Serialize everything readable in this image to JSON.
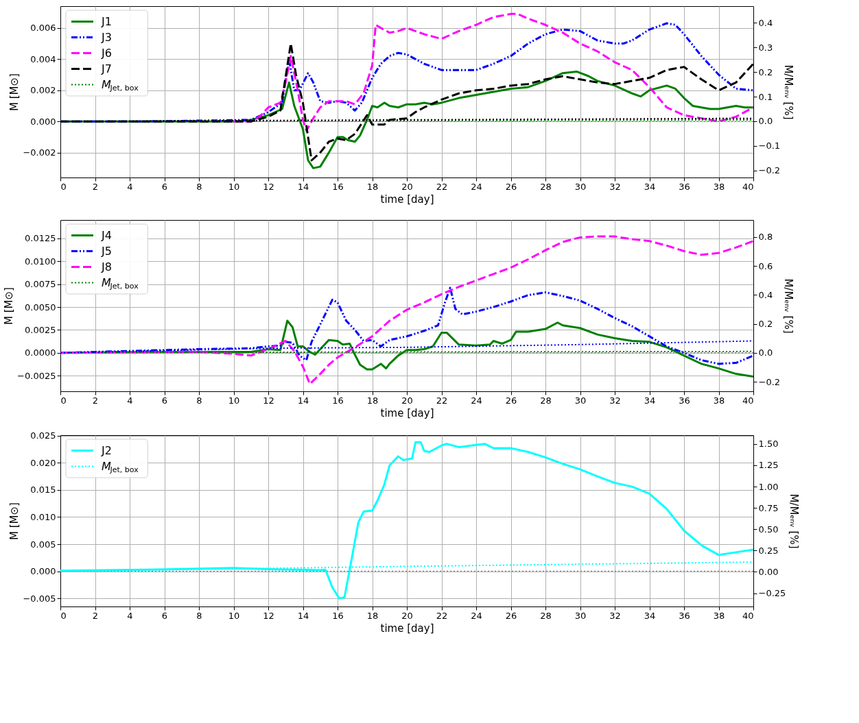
{
  "chart_data": [
    {
      "type": "line",
      "xlabel": "time [day]",
      "ylabel": "M [M⊙]",
      "y2label": "M/Mₑₙᵥ [%]",
      "xlim": [
        0,
        40
      ],
      "xticks": [
        0,
        2,
        4,
        6,
        8,
        10,
        12,
        14,
        16,
        18,
        20,
        22,
        24,
        26,
        28,
        30,
        32,
        34,
        36,
        38,
        40
      ],
      "ylim": [
        -0.0036,
        0.0074
      ],
      "yticks": [
        {
          "value": -0.002,
          "label": "−0.002"
        },
        {
          "value": 0,
          "label": "0.000"
        },
        {
          "value": 0.002,
          "label": "0.002"
        },
        {
          "value": 0.004,
          "label": "0.004"
        },
        {
          "value": 0.006,
          "label": "0.006"
        }
      ],
      "y2lim": [
        -0.228,
        0.467
      ],
      "y2ticks": [
        {
          "value": -0.2,
          "label": "−0.2"
        },
        {
          "value": -0.1,
          "label": "−0.1"
        },
        {
          "value": 0,
          "label": "0.0"
        },
        {
          "value": 0.1,
          "label": "0.1"
        },
        {
          "value": 0.2,
          "label": "0.2"
        },
        {
          "value": 0.3,
          "label": "0.3"
        },
        {
          "value": 0.4,
          "label": "0.4"
        }
      ],
      "grid": true,
      "legend": "top left",
      "ref_lines": [
        {
          "axis": "y",
          "value": 0,
          "color": "#808080",
          "line_style": "dotted"
        }
      ],
      "series": [
        {
          "name": "J1",
          "color": "#008000",
          "line_style": "solid",
          "x": [
            0,
            5,
            10,
            11,
            12,
            12.8,
            13.2,
            13.5,
            14,
            14.3,
            14.6,
            15,
            15.5,
            16,
            16.3,
            16.6,
            17,
            17.3,
            17.7,
            18,
            18.3,
            18.7,
            19,
            19.5,
            20,
            20.5,
            21,
            21.5,
            22,
            23,
            24,
            25,
            26,
            27,
            28,
            29,
            29.8,
            30.5,
            31,
            32,
            33,
            33.5,
            34,
            35,
            35.5,
            36,
            36.5,
            37,
            37.5,
            38,
            38.5,
            39,
            39.5,
            40
          ],
          "values": [
            0,
            0,
            0,
            0.0001,
            0.0004,
            0.0008,
            0.0025,
            0.001,
            -0.0005,
            -0.0025,
            -0.003,
            -0.0029,
            -0.002,
            -0.001,
            -0.001,
            -0.0012,
            -0.0013,
            -0.0009,
            0.0001,
            0.001,
            0.0009,
            0.0012,
            0.001,
            0.0009,
            0.0011,
            0.0011,
            0.0012,
            0.0011,
            0.0012,
            0.0015,
            0.0017,
            0.0019,
            0.0021,
            0.0022,
            0.0026,
            0.0031,
            0.0032,
            0.0029,
            0.0026,
            0.0023,
            0.0018,
            0.0016,
            0.002,
            0.0023,
            0.0021,
            0.0015,
            0.001,
            0.0009,
            0.0008,
            0.0008,
            0.0009,
            0.001,
            0.0009,
            0.0009
          ]
        },
        {
          "name": "J3",
          "color": "#0000ff",
          "line_style": "dashdot",
          "x": [
            0,
            5,
            11,
            12,
            12.8,
            13.2,
            13.5,
            13.8,
            14.3,
            14.6,
            15,
            15.5,
            16,
            16.5,
            17,
            17.4,
            18,
            18.5,
            19,
            19.5,
            20,
            21,
            22,
            23,
            24,
            25,
            26,
            27,
            28,
            29,
            30,
            31,
            32,
            32.5,
            33,
            34,
            35,
            35.5,
            36,
            37,
            38,
            39,
            40
          ],
          "values": [
            0,
            0,
            0.0001,
            0.0006,
            0.0012,
            0.004,
            0.002,
            0.002,
            0.0031,
            0.0025,
            0.0013,
            0.0012,
            0.0013,
            0.0012,
            0.0007,
            0.0012,
            0.0028,
            0.0037,
            0.0042,
            0.0044,
            0.0043,
            0.0037,
            0.0033,
            0.0033,
            0.0033,
            0.0037,
            0.0042,
            0.005,
            0.0056,
            0.0059,
            0.0058,
            0.0052,
            0.005,
            0.005,
            0.0052,
            0.0059,
            0.0063,
            0.0062,
            0.0056,
            0.0042,
            0.003,
            0.0021,
            0.002
          ]
        },
        {
          "name": "J6",
          "color": "#ff00ff",
          "line_style": "dashed",
          "x": [
            10,
            11,
            11.5,
            12,
            12.7,
            13,
            13.3,
            13.7,
            14,
            14.2,
            14.6,
            15,
            15.5,
            16,
            16.5,
            17,
            17.5,
            18,
            18.2,
            18.5,
            19,
            19.5,
            20,
            21,
            22,
            23,
            24,
            25,
            26,
            26.4,
            27,
            28,
            29,
            30,
            31,
            32,
            33,
            34,
            35,
            36,
            37,
            38,
            39,
            40
          ],
          "values": [
            0,
            0,
            0.0003,
            0.0009,
            0.0012,
            0.0025,
            0.0042,
            0.002,
            0.0001,
            -0.0006,
            0.0002,
            0.0009,
            0.0013,
            0.0013,
            0.0013,
            0.0011,
            0.0018,
            0.0036,
            0.0062,
            0.006,
            0.0057,
            0.0058,
            0.006,
            0.0056,
            0.0053,
            0.0058,
            0.0062,
            0.0067,
            0.0069,
            0.0069,
            0.0066,
            0.0062,
            0.0057,
            0.005,
            0.0045,
            0.0038,
            0.0033,
            0.0022,
            0.0009,
            0.0004,
            0.0002,
            0,
            0.0003,
            0.0009
          ]
        },
        {
          "name": "J7",
          "color": "#000000",
          "line_style": "dashed",
          "x": [
            0,
            5,
            11,
            12,
            12.7,
            13.3,
            13.6,
            14,
            14.5,
            15,
            15.5,
            16,
            16.5,
            17,
            17.7,
            18,
            18.7,
            19,
            20,
            20.5,
            21,
            22,
            23,
            24,
            25,
            26,
            27,
            28,
            29,
            30,
            31,
            32,
            33,
            34,
            35,
            36,
            37,
            38,
            39,
            40
          ],
          "values": [
            0,
            0,
            0,
            0.0003,
            0.0007,
            0.005,
            0.003,
            0.0012,
            -0.0025,
            -0.002,
            -0.0013,
            -0.0011,
            -0.0012,
            -0.0008,
            0.0004,
            -0.0002,
            -0.0002,
            0.0001,
            0.0002,
            0.0006,
            0.0009,
            0.0014,
            0.0018,
            0.002,
            0.0021,
            0.0023,
            0.0024,
            0.0027,
            0.0029,
            0.0027,
            0.0025,
            0.0024,
            0.0026,
            0.0028,
            0.0033,
            0.0035,
            0.0027,
            0.002,
            0.0025,
            0.0037
          ]
        },
        {
          "name": "M$_{Jet, box}$",
          "color": "#008000",
          "line_style": "dotted",
          "x": [
            0,
            40
          ],
          "values": [
            0,
            0.0001
          ]
        },
        {
          "color": "#000000",
          "line_style": "dotted",
          "x": [
            0,
            20,
            40
          ],
          "values": [
            0,
            0.0001,
            0.0002
          ]
        }
      ]
    },
    {
      "type": "line",
      "xlabel": "time [day]",
      "ylabel": "M [M⊙]",
      "y2label": "M/Mₑₙᵥ [%]",
      "xlim": [
        0,
        40
      ],
      "xticks": [
        0,
        2,
        4,
        6,
        8,
        10,
        12,
        14,
        16,
        18,
        20,
        22,
        24,
        26,
        28,
        30,
        32,
        34,
        36,
        38,
        40
      ],
      "ylim": [
        -0.0042,
        0.0145
      ],
      "yticks": [
        {
          "value": -0.0025,
          "label": "−0.0025"
        },
        {
          "value": 0,
          "label": "0.0000"
        },
        {
          "value": 0.0025,
          "label": "0.0025"
        },
        {
          "value": 0.005,
          "label": "0.0050"
        },
        {
          "value": 0.0075,
          "label": "0.0075"
        },
        {
          "value": 0.01,
          "label": "0.0100"
        },
        {
          "value": 0.0125,
          "label": "0.0125"
        }
      ],
      "y2lim": [
        -0.265,
        0.918
      ],
      "y2ticks": [
        {
          "value": -0.2,
          "label": "−0.2"
        },
        {
          "value": 0,
          "label": "0.0"
        },
        {
          "value": 0.2,
          "label": "0.2"
        },
        {
          "value": 0.4,
          "label": "0.4"
        },
        {
          "value": 0.6,
          "label": "0.6"
        },
        {
          "value": 0.8,
          "label": "0.8"
        }
      ],
      "grid": true,
      "legend": "top left",
      "ref_lines": [
        {
          "axis": "y",
          "value": 0,
          "color": "#808080",
          "line_style": "dotted"
        }
      ],
      "series": [
        {
          "name": "J4",
          "color": "#008000",
          "line_style": "solid",
          "x": [
            0,
            5,
            10,
            11,
            12,
            12.7,
            13.1,
            13.4,
            13.7,
            14,
            14.4,
            14.7,
            15,
            15.5,
            16,
            16.3,
            16.7,
            17,
            17.3,
            17.7,
            18,
            18.5,
            18.8,
            19,
            19.5,
            20,
            20.5,
            21,
            21.5,
            22,
            22.3,
            23,
            24,
            24.8,
            25,
            25.5,
            26,
            26.3,
            27,
            28,
            28.7,
            29,
            30,
            31,
            32,
            33,
            34,
            35,
            36,
            37,
            38,
            39,
            40
          ],
          "values": [
            0,
            0.0001,
            0.0001,
            0.0001,
            0.0004,
            0.0003,
            0.0035,
            0.0028,
            0.0007,
            0.0007,
            0.0001,
            -0.0002,
            0.0004,
            0.0014,
            0.0013,
            0.0009,
            0.001,
            -0.0002,
            -0.0013,
            -0.0018,
            -0.0018,
            -0.0012,
            -0.0017,
            -0.0012,
            -0.0003,
            0.0003,
            0.0003,
            0.0004,
            0.0007,
            0.0022,
            0.0022,
            0.0009,
            0.0008,
            0.0009,
            0.0013,
            0.001,
            0.0014,
            0.0023,
            0.0023,
            0.0026,
            0.0033,
            0.003,
            0.0027,
            0.002,
            0.0016,
            0.0013,
            0.0012,
            0.0006,
            -0.0003,
            -0.0012,
            -0.0017,
            -0.0023,
            -0.0026
          ]
        },
        {
          "name": "J5",
          "color": "#0000ff",
          "line_style": "dashdot",
          "x": [
            0,
            4,
            8,
            11,
            12,
            12.7,
            13,
            13.4,
            13.8,
            14.2,
            14.5,
            15,
            15.7,
            16,
            16.5,
            17,
            17.5,
            18,
            18.5,
            19,
            20,
            21,
            21.8,
            22.2,
            22.5,
            22.8,
            23.2,
            24,
            25,
            26,
            27,
            28,
            29,
            30,
            31,
            32,
            33,
            34,
            35,
            36,
            37,
            38,
            39,
            40
          ],
          "values": [
            0,
            0.0002,
            0.0004,
            0.0005,
            0.0007,
            0.0008,
            0.0012,
            0.0011,
            -0.0003,
            -0.0008,
            0.0012,
            0.0031,
            0.0058,
            0.0055,
            0.0035,
            0.0025,
            0.0013,
            0.0014,
            0.0007,
            0.0014,
            0.0018,
            0.0024,
            0.003,
            0.0055,
            0.0071,
            0.0048,
            0.0042,
            0.0045,
            0.005,
            0.0056,
            0.0063,
            0.0066,
            0.0062,
            0.0057,
            0.0048,
            0.0038,
            0.0029,
            0.0018,
            0.0007,
            0,
            -0.0008,
            -0.0012,
            -0.0011,
            -0.0003
          ]
        },
        {
          "name": "J8",
          "color": "#ff00ff",
          "line_style": "dashed",
          "x": [
            0,
            8,
            10,
            11,
            12,
            13,
            13.5,
            14,
            14.4,
            15,
            15.5,
            16,
            17,
            18,
            19,
            20,
            21,
            22,
            23,
            24,
            25,
            26,
            27,
            28,
            29,
            30,
            31,
            32,
            33,
            34,
            35,
            36,
            37,
            38,
            39,
            40
          ],
          "values": [
            0,
            0.0001,
            -0.0001,
            -0.0003,
            0.0004,
            0.0013,
            0.0002,
            -0.0015,
            -0.0034,
            -0.0023,
            -0.0013,
            -0.0005,
            0.0006,
            0.0018,
            0.0035,
            0.0047,
            0.0055,
            0.0064,
            0.0072,
            0.0079,
            0.0086,
            0.0093,
            0.0102,
            0.0112,
            0.0121,
            0.0126,
            0.0127,
            0.0127,
            0.0124,
            0.0122,
            0.0117,
            0.0111,
            0.0107,
            0.0109,
            0.0115,
            0.0122
          ]
        },
        {
          "name": "M$_{Jet, box}$",
          "color": "#008000",
          "line_style": "dotted",
          "x": [
            0,
            20,
            40
          ],
          "values": [
            0,
            0.0001,
            0.00015
          ]
        },
        {
          "color": "#0000ff",
          "line_style": "dotted",
          "x": [
            0,
            12,
            20,
            30,
            40
          ],
          "values": [
            0,
            0.0005,
            0.0006,
            0.0009,
            0.0013
          ]
        }
      ]
    },
    {
      "type": "line",
      "xlabel": "time [day]",
      "ylabel": "M [M⊙]",
      "y2label": "M/Mₑₙᵥ [%]",
      "xlim": [
        0,
        40
      ],
      "xticks": [
        0,
        2,
        4,
        6,
        8,
        10,
        12,
        14,
        16,
        18,
        20,
        22,
        24,
        26,
        28,
        30,
        32,
        34,
        36,
        38,
        40
      ],
      "ylim": [
        -0.0065,
        0.0251
      ],
      "yticks": [
        {
          "value": -0.005,
          "label": "−0.005"
        },
        {
          "value": 0,
          "label": "0.000"
        },
        {
          "value": 0.005,
          "label": "0.005"
        },
        {
          "value": 0.01,
          "label": "0.010"
        },
        {
          "value": 0.015,
          "label": "0.015"
        },
        {
          "value": 0.02,
          "label": "0.020"
        },
        {
          "value": 0.025,
          "label": "0.025"
        }
      ],
      "y2lim": [
        -0.406,
        1.603
      ],
      "y2ticks": [
        {
          "value": -0.25,
          "label": "−0.25"
        },
        {
          "value": 0,
          "label": "0.00"
        },
        {
          "value": 0.25,
          "label": "0.25"
        },
        {
          "value": 0.5,
          "label": "0.50"
        },
        {
          "value": 0.75,
          "label": "0.75"
        },
        {
          "value": 1,
          "label": "1.00"
        },
        {
          "value": 1.25,
          "label": "1.25"
        },
        {
          "value": 1.5,
          "label": "1.50"
        }
      ],
      "grid": true,
      "legend": "top left",
      "ref_lines": [
        {
          "axis": "y",
          "value": 0,
          "color": "#808080",
          "line_style": "dotted"
        }
      ],
      "series": [
        {
          "name": "J2",
          "color": "#00ffff",
          "line_style": "solid",
          "x": [
            0,
            5,
            10,
            12,
            15,
            15.3,
            15.7,
            16.1,
            16.4,
            16.8,
            17.2,
            17.5,
            18,
            18.3,
            18.7,
            19,
            19.5,
            19.8,
            20.3,
            20.5,
            20.8,
            21,
            21.3,
            22,
            22.3,
            23,
            24,
            24.5,
            25,
            26,
            27,
            28,
            29,
            30,
            31,
            32,
            33,
            34,
            35,
            36,
            37,
            38,
            39,
            40
          ],
          "values": [
            0.0001,
            0.0003,
            0.0006,
            0.0004,
            0.0002,
            0.0003,
            -0.003,
            -0.005,
            -0.0048,
            0.002,
            0.009,
            0.011,
            0.0112,
            0.013,
            0.016,
            0.0195,
            0.0212,
            0.0205,
            0.0208,
            0.0238,
            0.0238,
            0.0222,
            0.022,
            0.0232,
            0.0235,
            0.0229,
            0.0233,
            0.0235,
            0.0227,
            0.0227,
            0.022,
            0.021,
            0.0198,
            0.0188,
            0.0175,
            0.0163,
            0.0156,
            0.0143,
            0.0115,
            0.0075,
            0.0048,
            0.003,
            0.0035,
            0.004
          ]
        },
        {
          "name": "M$_{Jet, box}$",
          "color": "#00ffff",
          "line_style": "dotted",
          "x": [
            0,
            20,
            30,
            40
          ],
          "values": [
            0,
            0.0009,
            0.0013,
            0.0017
          ]
        }
      ]
    }
  ]
}
